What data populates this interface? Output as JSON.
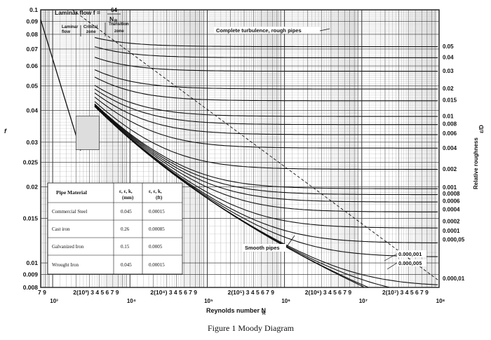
{
  "chart_data": {
    "type": "line",
    "title": "",
    "caption": "Figure 1 Moody Diagram",
    "xlabel": "Reynolds number N",
    "xlabel_sub": "R",
    "ylabel": "f",
    "right_axis_label": "Relative roughness",
    "right_axis_label_sym": "ε/D",
    "xscale": "log",
    "yscale": "log",
    "xlim": [
      700,
      100000000
    ],
    "ylim": [
      0.008,
      0.1
    ],
    "grid": true,
    "y_ticks": [
      "0.1",
      "0.09",
      "0.08",
      "0.07",
      "0.06",
      "0.05",
      "0.04",
      "0.03",
      "0.025",
      "0.02",
      "0.015",
      "0.01",
      "0.009",
      "0.008"
    ],
    "y_tick_values": [
      0.1,
      0.09,
      0.08,
      0.07,
      0.06,
      0.05,
      0.04,
      0.03,
      0.025,
      0.02,
      0.015,
      0.01,
      0.009,
      0.008
    ],
    "x_tick_rows": [
      {
        "text": "7 9",
        "x": 700
      },
      {
        "text": "2(10³) 3 4 5 6 7 9",
        "x": 2000
      },
      {
        "text": "2(10⁴) 3 4 5 6 7 9",
        "x": 20000
      },
      {
        "text": "2(10⁵) 3 4 5 6 7 9",
        "x": 200000
      },
      {
        "text": "2(10⁶) 3 4 5 6 7 9",
        "x": 2000000
      },
      {
        "text": "2(10⁷) 3 4 5 6 7 9",
        "x": 20000000
      }
    ],
    "x_powers": [
      {
        "text": "10³",
        "x": 1000
      },
      {
        "text": "10⁴",
        "x": 10000
      },
      {
        "text": "10⁵",
        "x": 100000
      },
      {
        "text": "10⁶",
        "x": 1000000
      },
      {
        "text": "10⁷",
        "x": 10000000
      },
      {
        "text": "10⁸",
        "x": 100000000
      }
    ],
    "roughness_labels": [
      {
        "text": "0.05",
        "y": 0.0718
      },
      {
        "text": "0.04",
        "y": 0.065
      },
      {
        "text": "0.03",
        "y": 0.0575
      },
      {
        "text": "0.02",
        "y": 0.049
      },
      {
        "text": "0.015",
        "y": 0.044
      },
      {
        "text": "0.01",
        "y": 0.038
      },
      {
        "text": "0.008",
        "y": 0.0355
      },
      {
        "text": "0.006",
        "y": 0.0325
      },
      {
        "text": "0.004",
        "y": 0.0285
      },
      {
        "text": "0.002",
        "y": 0.0235
      },
      {
        "text": "0.001",
        "y": 0.0199
      },
      {
        "text": "0.0008",
        "y": 0.0188
      },
      {
        "text": "0.0006",
        "y": 0.0176
      },
      {
        "text": "0.0004",
        "y": 0.0163
      },
      {
        "text": "0.0002",
        "y": 0.0146
      },
      {
        "text": "0.0001",
        "y": 0.0134
      },
      {
        "text": "0.000,05",
        "y": 0.0124
      },
      {
        "text": "0.000,01",
        "y": 0.0087
      }
    ],
    "roughness_values": [
      0.05,
      0.04,
      0.03,
      0.02,
      0.015,
      0.01,
      0.008,
      0.006,
      0.004,
      0.002,
      0.001,
      0.0008,
      0.0006,
      0.0004,
      0.0002,
      0.0001,
      5e-05,
      1e-05
    ],
    "laminar_series": {
      "name": "Laminar flow f = 64/N_R",
      "x": [
        700,
        2300
      ],
      "y": [
        0.0914,
        0.0278
      ]
    },
    "annotations": {
      "laminar_flow": "Laminar flow f =",
      "laminar_num": "64",
      "laminar_den": "N",
      "laminar_den_sub": "R",
      "laminar_zone": "Laminar",
      "laminar_zone2": "flow",
      "critical_zone": "Critical",
      "critical_zone2": "zone",
      "transition_zone": "Transition",
      "transition_zone2": "zone",
      "complete_turbulence": "Complete turbulence, rough pipes",
      "smooth_pipes": "Smooth pipes",
      "small_roughness_1": "0.000,001",
      "small_roughness_2": "0.000,005"
    }
  },
  "material_table": {
    "headers": [
      "Pipe Material",
      "ε, ε, k,",
      "(mm)",
      "ε, ε, k,",
      "(ft)"
    ],
    "rows": [
      [
        "Commercial Steel",
        "0.045",
        "0.00015"
      ],
      [
        "Cast iron",
        "0.26",
        "0.00085"
      ],
      [
        "Galvanized Iron",
        "0.15",
        "0.0005"
      ],
      [
        "Wrought Iron",
        "0.045",
        "0.00015"
      ]
    ]
  }
}
